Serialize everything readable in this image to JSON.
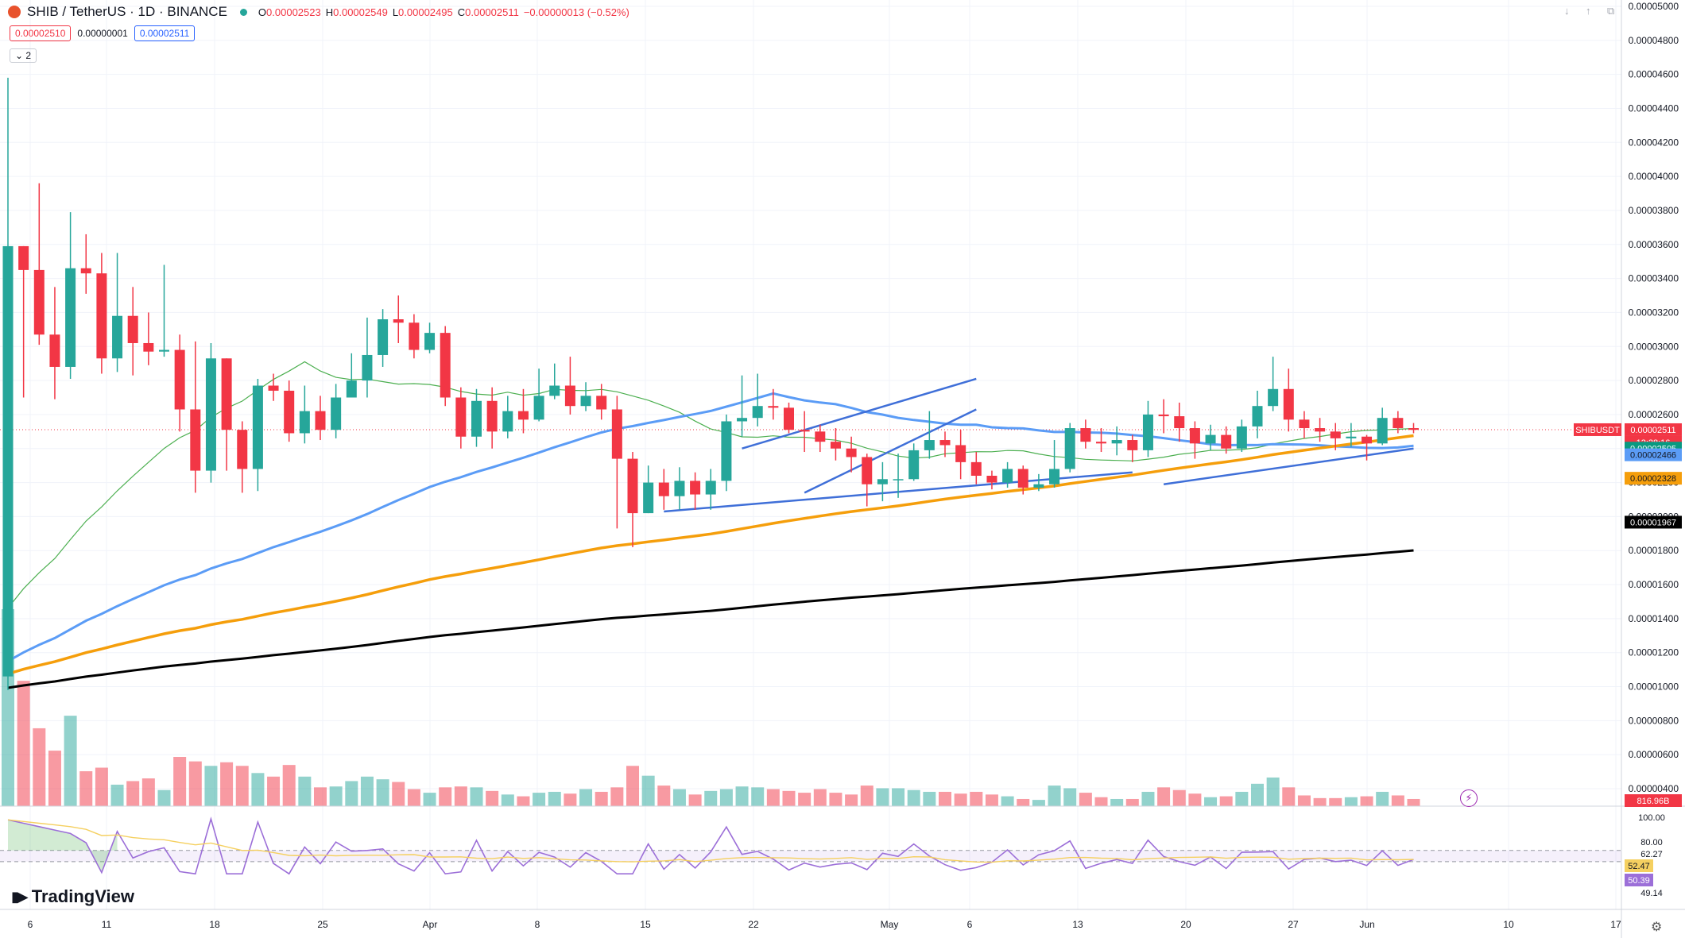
{
  "header": {
    "symbol_title": "SHIB / TetherUS · 1D · BINANCE",
    "ohlc": [
      {
        "k": "O",
        "v": "0.00002523"
      },
      {
        "k": "H",
        "v": "0.00002549"
      },
      {
        "k": "L",
        "v": "0.00002495"
      },
      {
        "k": "C",
        "v": "0.00002511"
      },
      {
        "k": "",
        "v": "−0.00000013 (−0.52%)"
      }
    ],
    "sell_price": "0.00002510",
    "spread": "0.00000001",
    "buy_price": "0.00002511",
    "indicators_toggle": "⌄ 2"
  },
  "branding": {
    "logo_text": "TradingView"
  },
  "colors": {
    "up": "#26a69a",
    "down": "#f23645",
    "ma_short": "#4caf50",
    "ma_mid": "#5b9cf6",
    "ma_long": "#f59e0b",
    "ma_very_long": "#000000",
    "trendline": "#3f6fd8",
    "rsi": "#9c6fd8",
    "rsi_ma": "#f5d060"
  },
  "chart_data": {
    "type": "candlestick",
    "symbol": "SHIBUSDT",
    "price_scale": {
      "min": 4e-06,
      "max": 5e-05,
      "step": 2e-06,
      "tick_labels": [
        "0.00005000",
        "0.00004800",
        "0.00004600",
        "0.00004400",
        "0.00004200",
        "0.00004000",
        "0.00003800",
        "0.00003600",
        "0.00003400",
        "0.00003200",
        "0.00003000",
        "0.00002800",
        "0.00002600",
        "0.00002400",
        "0.00002200",
        "0.00002000",
        "0.00001800",
        "0.00001600",
        "0.00001400",
        "0.00001200",
        "0.00001000",
        "0.00000800",
        "0.00000600",
        "0.00000400"
      ]
    },
    "x_tick_labels": [
      "6",
      "11",
      "18",
      "25",
      "Apr",
      "8",
      "15",
      "22",
      "May",
      "6",
      "13",
      "20",
      "27",
      "Jun",
      "10",
      "17"
    ],
    "candles": [
      [
        1.06e-05,
        3.59e-05,
        4.58e-05,
        9.8e-06
      ],
      [
        3.59e-05,
        3.45e-05,
        3.59e-05,
        2.7e-05
      ],
      [
        3.45e-05,
        3.07e-05,
        3.96e-05,
        3.01e-05
      ],
      [
        3.07e-05,
        2.88e-05,
        3.35e-05,
        2.69e-05
      ],
      [
        2.88e-05,
        3.46e-05,
        3.79e-05,
        2.81e-05
      ],
      [
        3.46e-05,
        3.43e-05,
        3.66e-05,
        3.31e-05
      ],
      [
        3.43e-05,
        2.93e-05,
        3.55e-05,
        2.84e-05
      ],
      [
        2.93e-05,
        3.18e-05,
        3.55e-05,
        2.85e-05
      ],
      [
        3.18e-05,
        3.02e-05,
        3.35e-05,
        2.83e-05
      ],
      [
        3.02e-05,
        2.97e-05,
        3.2e-05,
        2.89e-05
      ],
      [
        2.97e-05,
        2.98e-05,
        3.48e-05,
        2.94e-05
      ],
      [
        2.98e-05,
        2.63e-05,
        3.07e-05,
        2.5e-05
      ],
      [
        2.63e-05,
        2.27e-05,
        3.03e-05,
        2.14e-05
      ],
      [
        2.27e-05,
        2.93e-05,
        3.02e-05,
        2.2e-05
      ],
      [
        2.93e-05,
        2.51e-05,
        2.93e-05,
        2.27e-05
      ],
      [
        2.51e-05,
        2.28e-05,
        2.56e-05,
        2.14e-05
      ],
      [
        2.28e-05,
        2.77e-05,
        2.81e-05,
        2.15e-05
      ],
      [
        2.77e-05,
        2.74e-05,
        2.84e-05,
        2.68e-05
      ],
      [
        2.74e-05,
        2.49e-05,
        2.8e-05,
        2.44e-05
      ],
      [
        2.49e-05,
        2.62e-05,
        2.77e-05,
        2.43e-05
      ],
      [
        2.62e-05,
        2.51e-05,
        2.71e-05,
        2.45e-05
      ],
      [
        2.51e-05,
        2.7e-05,
        2.78e-05,
        2.46e-05
      ],
      [
        2.7e-05,
        2.8e-05,
        2.96e-05,
        2.76e-05
      ],
      [
        2.8e-05,
        2.95e-05,
        3.17e-05,
        2.7e-05
      ],
      [
        2.95e-05,
        3.16e-05,
        3.22e-05,
        2.88e-05
      ],
      [
        3.16e-05,
        3.14e-05,
        3.3e-05,
        3.02e-05
      ],
      [
        3.14e-05,
        2.98e-05,
        3.19e-05,
        2.93e-05
      ],
      [
        2.98e-05,
        3.08e-05,
        3.14e-05,
        2.96e-05
      ],
      [
        3.08e-05,
        2.7e-05,
        3.12e-05,
        2.65e-05
      ],
      [
        2.7e-05,
        2.47e-05,
        2.76e-05,
        2.4e-05
      ],
      [
        2.47e-05,
        2.68e-05,
        2.75e-05,
        2.41e-05
      ],
      [
        2.68e-05,
        2.5e-05,
        2.76e-05,
        2.4e-05
      ],
      [
        2.5e-05,
        2.62e-05,
        2.71e-05,
        2.46e-05
      ],
      [
        2.62e-05,
        2.57e-05,
        2.75e-05,
        2.49e-05
      ],
      [
        2.57e-05,
        2.71e-05,
        2.87e-05,
        2.56e-05
      ],
      [
        2.71e-05,
        2.77e-05,
        2.9e-05,
        2.69e-05
      ],
      [
        2.77e-05,
        2.65e-05,
        2.94e-05,
        2.6e-05
      ],
      [
        2.65e-05,
        2.71e-05,
        2.79e-05,
        2.62e-05
      ],
      [
        2.71e-05,
        2.63e-05,
        2.78e-05,
        2.57e-05
      ],
      [
        2.63e-05,
        2.34e-05,
        2.71e-05,
        1.93e-05
      ],
      [
        2.34e-05,
        2.02e-05,
        2.38e-05,
        1.82e-05
      ],
      [
        2.02e-05,
        2.2e-05,
        2.3e-05,
        2.02e-05
      ],
      [
        2.2e-05,
        2.12e-05,
        2.28e-05,
        2.04e-05
      ],
      [
        2.12e-05,
        2.21e-05,
        2.29e-05,
        2.04e-05
      ],
      [
        2.21e-05,
        2.13e-05,
        2.26e-05,
        2.04e-05
      ],
      [
        2.13e-05,
        2.21e-05,
        2.28e-05,
        2.04e-05
      ],
      [
        2.21e-05,
        2.56e-05,
        2.6e-05,
        2.15e-05
      ],
      [
        2.56e-05,
        2.58e-05,
        2.83e-05,
        2.47e-05
      ],
      [
        2.58e-05,
        2.65e-05,
        2.84e-05,
        2.53e-05
      ],
      [
        2.65e-05,
        2.64e-05,
        2.75e-05,
        2.57e-05
      ],
      [
        2.64e-05,
        2.51e-05,
        2.67e-05,
        2.49e-05
      ],
      [
        2.51e-05,
        2.5e-05,
        2.62e-05,
        2.38e-05
      ],
      [
        2.5e-05,
        2.44e-05,
        2.54e-05,
        2.38e-05
      ],
      [
        2.44e-05,
        2.4e-05,
        2.52e-05,
        2.33e-05
      ],
      [
        2.4e-05,
        2.35e-05,
        2.47e-05,
        2.26e-05
      ],
      [
        2.35e-05,
        2.19e-05,
        2.37e-05,
        2.06e-05
      ],
      [
        2.19e-05,
        2.22e-05,
        2.32e-05,
        2.09e-05
      ],
      [
        2.22e-05,
        2.22e-05,
        2.37e-05,
        2.11e-05
      ],
      [
        2.22e-05,
        2.39e-05,
        2.43e-05,
        2.21e-05
      ],
      [
        2.39e-05,
        2.45e-05,
        2.62e-05,
        2.34e-05
      ],
      [
        2.45e-05,
        2.42e-05,
        2.5e-05,
        2.35e-05
      ],
      [
        2.42e-05,
        2.32e-05,
        2.51e-05,
        2.22e-05
      ],
      [
        2.32e-05,
        2.24e-05,
        2.38e-05,
        2.19e-05
      ],
      [
        2.24e-05,
        2.2e-05,
        2.27e-05,
        2.16e-05
      ],
      [
        2.2e-05,
        2.28e-05,
        2.32e-05,
        2.17e-05
      ],
      [
        2.28e-05,
        2.17e-05,
        2.3e-05,
        2.13e-05
      ],
      [
        2.17e-05,
        2.19e-05,
        2.25e-05,
        2.15e-05
      ],
      [
        2.19e-05,
        2.28e-05,
        2.45e-05,
        2.17e-05
      ],
      [
        2.28e-05,
        2.52e-05,
        2.55e-05,
        2.26e-05
      ],
      [
        2.52e-05,
        2.44e-05,
        2.57e-05,
        2.4e-05
      ],
      [
        2.44e-05,
        2.43e-05,
        2.52e-05,
        2.38e-05
      ],
      [
        2.43e-05,
        2.45e-05,
        2.53e-05,
        2.36e-05
      ],
      [
        2.45e-05,
        2.39e-05,
        2.48e-05,
        2.32e-05
      ],
      [
        2.39e-05,
        2.6e-05,
        2.68e-05,
        2.35e-05
      ],
      [
        2.6e-05,
        2.59e-05,
        2.69e-05,
        2.49e-05
      ],
      [
        2.59e-05,
        2.52e-05,
        2.67e-05,
        2.44e-05
      ],
      [
        2.52e-05,
        2.43e-05,
        2.56e-05,
        2.34e-05
      ],
      [
        2.43e-05,
        2.48e-05,
        2.54e-05,
        2.39e-05
      ],
      [
        2.48e-05,
        2.4e-05,
        2.53e-05,
        2.37e-05
      ],
      [
        2.4e-05,
        2.53e-05,
        2.57e-05,
        2.38e-05
      ],
      [
        2.53e-05,
        2.65e-05,
        2.74e-05,
        2.46e-05
      ],
      [
        2.65e-05,
        2.75e-05,
        2.94e-05,
        2.62e-05
      ],
      [
        2.75e-05,
        2.57e-05,
        2.87e-05,
        2.5e-05
      ],
      [
        2.57e-05,
        2.52e-05,
        2.62e-05,
        2.46e-05
      ],
      [
        2.52e-05,
        2.5e-05,
        2.58e-05,
        2.44e-05
      ],
      [
        2.5e-05,
        2.46e-05,
        2.55e-05,
        2.39e-05
      ],
      [
        2.46e-05,
        2.47e-05,
        2.55e-05,
        2.41e-05
      ],
      [
        2.47e-05,
        2.43e-05,
        2.48e-05,
        2.33e-05
      ],
      [
        2.43e-05,
        2.58e-05,
        2.64e-05,
        2.42e-05
      ],
      [
        2.58e-05,
        2.52e-05,
        2.62e-05,
        2.49e-05
      ],
      [
        2.52e-05,
        2.51e-05,
        2.55e-05,
        2.49e-05
      ]
    ],
    "volume": [
      22,
      14,
      8.7,
      6.2,
      10.1,
      3.9,
      4.3,
      2.4,
      2.8,
      3.1,
      1.8,
      5.5,
      5.0,
      4.5,
      4.9,
      4.5,
      3.7,
      3.3,
      4.6,
      3.3,
      2.1,
      2.2,
      2.8,
      3.3,
      3.0,
      2.7,
      1.9,
      1.5,
      2.1,
      2.2,
      2.1,
      1.7,
      1.3,
      1.1,
      1.5,
      1.6,
      1.4,
      1.9,
      1.6,
      2.1,
      4.5,
      3.4,
      2.3,
      1.9,
      1.3,
      1.7,
      1.9,
      2.2,
      2.1,
      1.9,
      1.7,
      1.5,
      1.9,
      1.5,
      1.3,
      2.3,
      2.0,
      2.0,
      1.8,
      1.6,
      1.6,
      1.4,
      1.6,
      1.3,
      1.1,
      0.8,
      0.7,
      2.3,
      2.0,
      1.5,
      1.0,
      0.8,
      0.8,
      1.6,
      2.1,
      1.8,
      1.4,
      1.0,
      1.1,
      1.6,
      2.5,
      3.2,
      2.1,
      1.2,
      0.9,
      0.9,
      1.0,
      1.1,
      1.6,
      1.2,
      0.8
    ],
    "volume_last_label": "816.96B",
    "rsi": {
      "scale_labels": [
        "100.00",
        "80.00",
        "62.27",
        "49.14"
      ],
      "upper_band": 62.27,
      "lower_band": 49.14,
      "rsi_value_label": "50.39",
      "rsi_ma_value_label": "52.47"
    },
    "moving_averages": {
      "ma20_value": "0.00002505",
      "ma50_value": "0.00002466",
      "ma100_value": "0.00002328",
      "ma200_value": "0.00001967"
    },
    "last_price": {
      "symbol": "SHIBUSDT",
      "value": "0.00002511",
      "countdown": "12:28:16"
    }
  }
}
